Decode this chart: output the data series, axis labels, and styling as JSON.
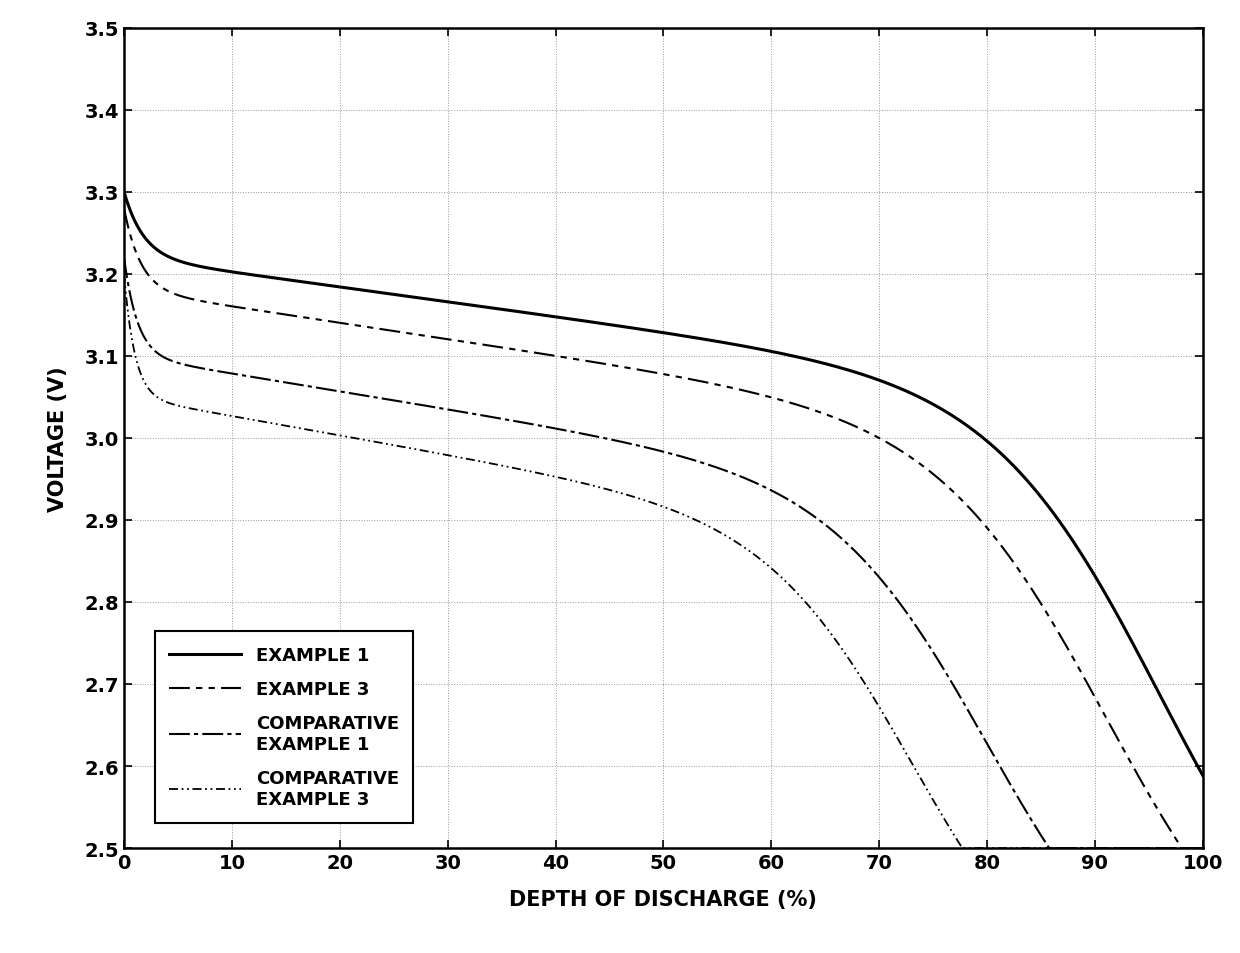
{
  "title": "",
  "xlabel": "DEPTH OF DISCHARGE (%)",
  "ylabel": "VOLTAGE (V)",
  "xlim": [
    0,
    100
  ],
  "ylim": [
    2.5,
    3.5
  ],
  "xticks": [
    0,
    10,
    20,
    30,
    40,
    50,
    60,
    70,
    80,
    90,
    100
  ],
  "yticks": [
    2.5,
    2.6,
    2.7,
    2.8,
    2.9,
    3.0,
    3.1,
    3.2,
    3.3,
    3.4,
    3.5
  ],
  "background_color": "#ffffff",
  "legend_labels": [
    "EXAMPLE 1",
    "EXAMPLE 3",
    "COMPARATIVE\nEXAMPLE 1",
    "COMPARATIVE\nEXAMPLE 3"
  ]
}
